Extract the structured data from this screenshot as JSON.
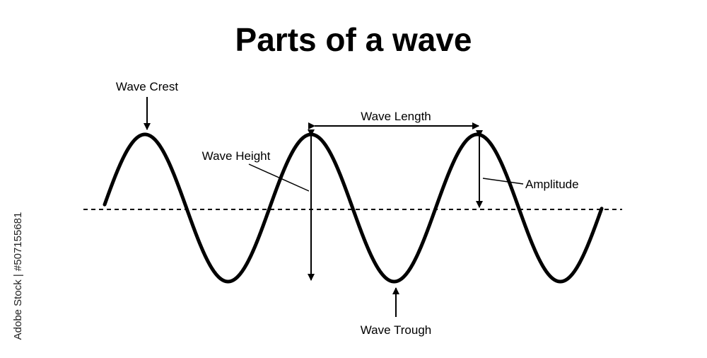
{
  "title": "Parts of a wave",
  "labels": {
    "crest": "Wave Crest",
    "trough": "Wave Trough",
    "length": "Wave Length",
    "height": "Wave Height",
    "amplitude": "Amplitude"
  },
  "side_text": "Adobe Stock | #507155681",
  "colors": {
    "ink": "#000000",
    "background": "#ffffff"
  }
}
